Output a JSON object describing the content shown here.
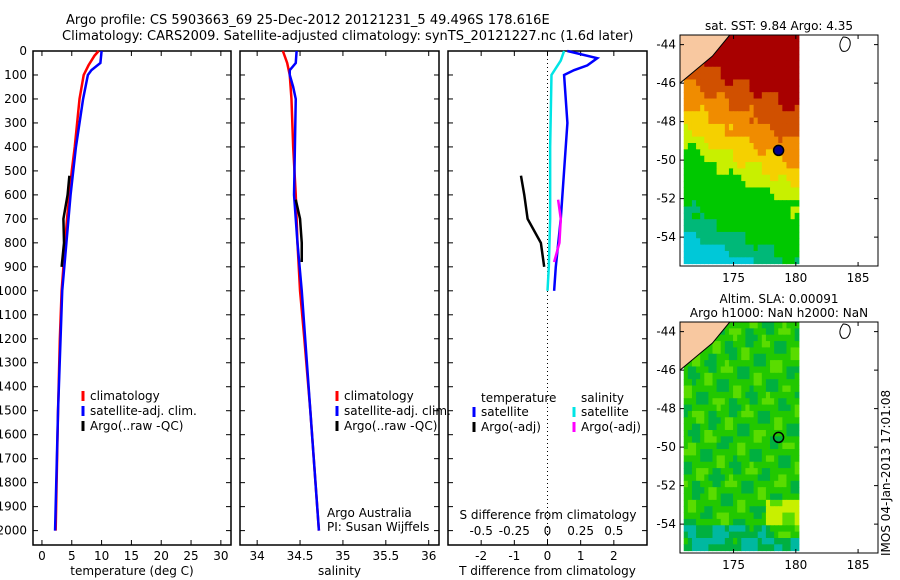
{
  "title_line1": "Argo profile: CS 5903663_69 25-Dec-2012 20121231_5 49.496S 178.616E",
  "title_line2": "Climatology: CARS2009. Satellite-adjusted climatology: synTS_20121227.nc (1.6d later)",
  "timestamp": "IMOS 04-Jan-2013 17:01:08",
  "chart_data": [
    {
      "type": "line",
      "id": "temp",
      "xlabel": "temperature (deg C)",
      "ylabel": "",
      "xlim": [
        -1.5,
        31.7
      ],
      "ylim": [
        0,
        2060
      ],
      "xticks": [
        0,
        5,
        10,
        15,
        20,
        25,
        30
      ],
      "xticklabels": [
        "0",
        "5",
        "10",
        "15",
        "20",
        "25",
        "30"
      ],
      "yticks": [
        0,
        100,
        200,
        300,
        400,
        500,
        600,
        700,
        800,
        900,
        1000,
        1100,
        1200,
        1300,
        1400,
        1500,
        1600,
        1700,
        1800,
        1900,
        2000
      ],
      "legend": [
        "climatology",
        "satellite-adj. clim.",
        "Argo(..raw -QC)"
      ],
      "series": [
        {
          "name": "climatology",
          "color": "#ff0000",
          "points": [
            [
              9.5,
              0
            ],
            [
              8.8,
              20
            ],
            [
              7.8,
              60
            ],
            [
              7,
              100
            ],
            [
              6.3,
              200
            ],
            [
              5.5,
              400
            ],
            [
              5.0,
              500
            ],
            [
              4.2,
              700
            ],
            [
              3.6,
              900
            ],
            [
              3.3,
              1000
            ],
            [
              3.0,
              1200
            ],
            [
              2.7,
              1500
            ],
            [
              2.3,
              2000
            ]
          ]
        },
        {
          "name": "satellite-adj. clim.",
          "color": "#0000ff",
          "points": [
            [
              10,
              0
            ],
            [
              9.8,
              50
            ],
            [
              8.3,
              80
            ],
            [
              7.7,
              100
            ],
            [
              6.9,
              200
            ],
            [
              5.7,
              400
            ],
            [
              4.8,
              600
            ],
            [
              4.1,
              800
            ],
            [
              3.4,
              1000
            ],
            [
              2.7,
              1500
            ],
            [
              2.2,
              2000
            ]
          ]
        },
        {
          "name": "Argo(..raw -QC)",
          "color": "#000000",
          "points": [
            [
              4.6,
              520
            ],
            [
              4.3,
              600
            ],
            [
              3.6,
              700
            ],
            [
              3.7,
              800
            ],
            [
              3.3,
              900
            ]
          ]
        }
      ]
    },
    {
      "type": "line",
      "id": "sal",
      "xlabel": "salinity",
      "xlim": [
        33.8,
        36.12
      ],
      "ylim": [
        0,
        2060
      ],
      "xticks": [
        34,
        34.5,
        35,
        35.5,
        36
      ],
      "xticklabels": [
        "34",
        "34.5",
        "35",
        "35.5",
        "36"
      ],
      "legend": [
        "climatology",
        "satellite-adj. clim.",
        "Argo(..raw -QC)"
      ],
      "annotation": [
        "Argo Australia",
        "PI: Susan Wijffels"
      ],
      "series": [
        {
          "name": "climatology",
          "color": "#ff0000",
          "points": [
            [
              34.3,
              0
            ],
            [
              34.35,
              50
            ],
            [
              34.38,
              100
            ],
            [
              34.4,
              200
            ],
            [
              34.42,
              400
            ],
            [
              34.45,
              600
            ],
            [
              34.47,
              800
            ],
            [
              34.5,
              1000
            ],
            [
              34.55,
              1200
            ],
            [
              34.62,
              1500
            ],
            [
              34.72,
              2000
            ]
          ]
        },
        {
          "name": "satellite-adj. clim.",
          "color": "#0000ff",
          "points": [
            [
              34.46,
              0
            ],
            [
              34.45,
              50
            ],
            [
              34.38,
              80
            ],
            [
              34.38,
              100
            ],
            [
              34.42,
              150
            ],
            [
              34.45,
              200
            ],
            [
              34.44,
              400
            ],
            [
              34.43,
              600
            ],
            [
              34.47,
              800
            ],
            [
              34.52,
              1000
            ],
            [
              34.62,
              1500
            ],
            [
              34.72,
              2000
            ]
          ]
        },
        {
          "name": "Argo(..raw -QC)",
          "color": "#000000",
          "points": [
            [
              34.45,
              620
            ],
            [
              34.5,
              700
            ],
            [
              34.52,
              800
            ],
            [
              34.52,
              880
            ]
          ]
        }
      ]
    },
    {
      "type": "line",
      "id": "diff",
      "xlabel": "T difference from climatology",
      "xlabel2": "S difference from climatology",
      "xlim": [
        -3,
        3
      ],
      "ylim": [
        0,
        2060
      ],
      "xticks": [
        -2,
        -1,
        0,
        1,
        2
      ],
      "xticklabels": [
        "-2",
        "-1",
        "0",
        "1",
        "2"
      ],
      "sticks": [
        -0.5,
        -0.25,
        0,
        0.25,
        0.5
      ],
      "sticklabels": [
        "-0.5",
        "-0.25",
        "0",
        "0.25",
        "0.5"
      ],
      "legend_headers": [
        "temperature",
        "salinity"
      ],
      "legend": [
        "satellite",
        "Argo(-adj)",
        "satellite",
        "Argo(-adj)"
      ],
      "series": [
        {
          "name": "T satellite",
          "color": "#0000ff",
          "points": [
            [
              0.6,
              0
            ],
            [
              1.5,
              30
            ],
            [
              1.2,
              60
            ],
            [
              0.8,
              80
            ],
            [
              0.5,
              100
            ],
            [
              0.6,
              300
            ],
            [
              0.5,
              500
            ],
            [
              0.4,
              700
            ],
            [
              0.25,
              900
            ],
            [
              0.2,
              1000
            ]
          ]
        },
        {
          "name": "T Argo(-adj)",
          "color": "#000000",
          "points": [
            [
              -0.8,
              520
            ],
            [
              -0.7,
              600
            ],
            [
              -0.6,
              700
            ],
            [
              -0.2,
              800
            ],
            [
              -0.1,
              900
            ]
          ]
        },
        {
          "name": "S satellite",
          "color": "#00e5e5",
          "scale": 4,
          "points": [
            [
              0.125,
              0
            ],
            [
              0.1,
              40
            ],
            [
              0.03,
              100
            ],
            [
              0.02,
              400
            ],
            [
              0.02,
              700
            ],
            [
              0.01,
              900
            ],
            [
              0,
              1000
            ]
          ]
        },
        {
          "name": "S Argo(-adj)",
          "color": "#ff00ff",
          "scale": 4,
          "points": [
            [
              0.08,
              620
            ],
            [
              0.1,
              700
            ],
            [
              0.09,
              800
            ],
            [
              0.05,
              880
            ]
          ]
        }
      ]
    }
  ],
  "maps": [
    {
      "title": [
        "sat. SST: 9.84 Argo: 4.35"
      ],
      "kind": "sst"
    },
    {
      "title": [
        "Altim. SLA: 0.00091",
        "Argo h1000: NaN h2000: NaN"
      ],
      "kind": "sla"
    }
  ],
  "map_axes": {
    "lon_ticks": [
      175,
      180,
      185
    ],
    "lat_ticks": [
      -44,
      -46,
      -48,
      -50,
      -52,
      -54
    ],
    "lonlim": [
      170.7,
      186.6
    ],
    "latlim": [
      -43.5,
      -55.5
    ],
    "argo_lon": 178.616,
    "argo_lat": -49.496
  }
}
